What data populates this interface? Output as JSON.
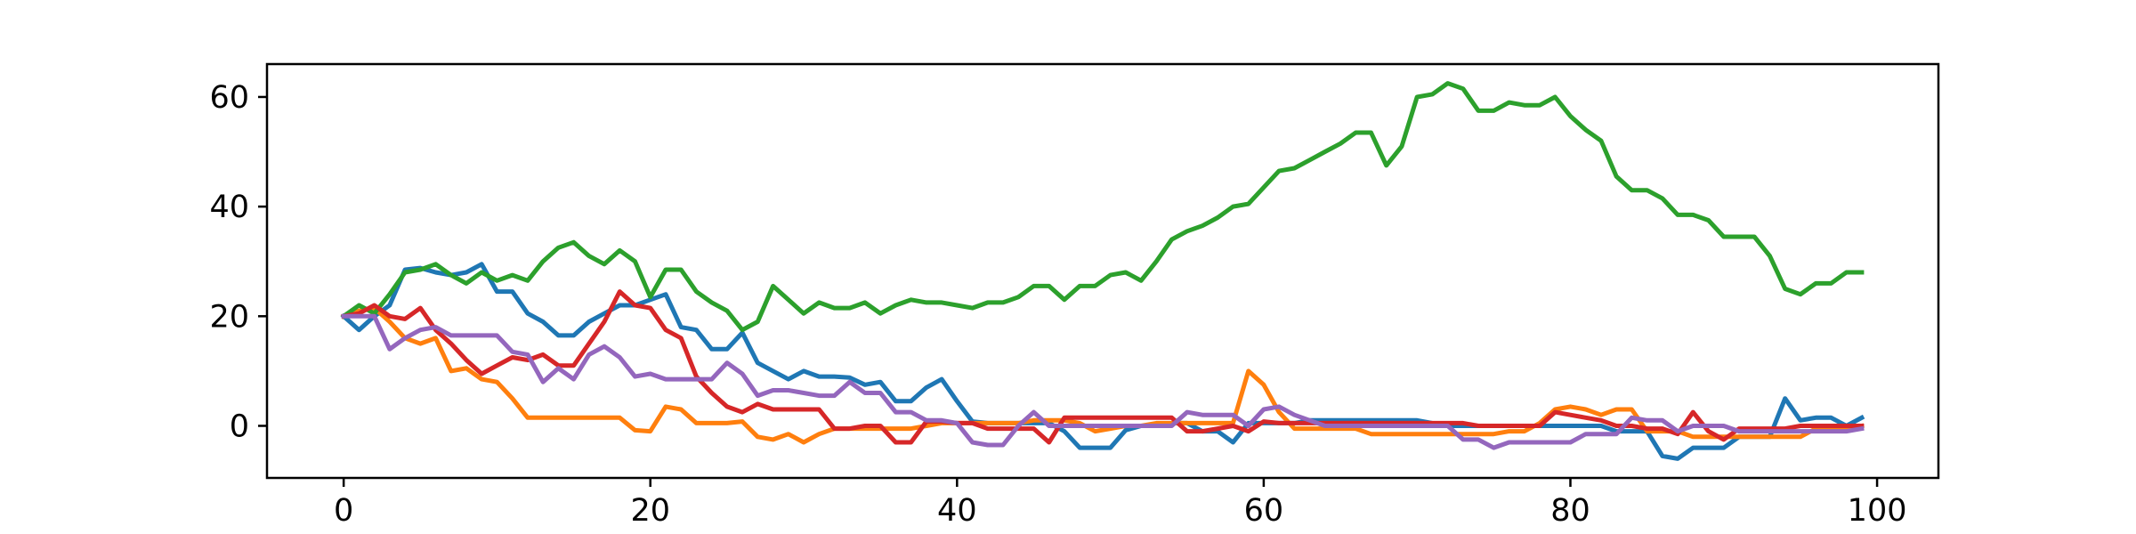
{
  "chart_data": {
    "type": "line",
    "title": "",
    "xlabel": "",
    "ylabel": "",
    "xlim": [
      -5,
      104
    ],
    "ylim": [
      -9.5,
      66
    ],
    "xticks": [
      0,
      20,
      40,
      60,
      80,
      100
    ],
    "yticks": [
      0,
      20,
      40,
      60
    ],
    "grid": false,
    "legend": "none",
    "x_start": 0,
    "series": [
      {
        "color": "#1f77b4",
        "values": [
          20,
          17.5,
          20,
          22,
          28.5,
          28.8,
          28,
          27.5,
          28,
          29.5,
          24.5,
          24.5,
          20.5,
          19,
          16.5,
          16.5,
          19,
          20.5,
          22,
          22,
          23,
          24,
          18,
          17.5,
          14,
          14,
          17,
          11.5,
          10,
          8.5,
          10,
          9,
          9,
          8.8,
          7.5,
          8,
          4.5,
          4.5,
          7,
          8.5,
          4.5,
          0.8,
          0.5,
          0.5,
          0.5,
          0.5,
          0.5,
          -1,
          -4,
          -4,
          -4,
          -0.8,
          0,
          0,
          0.5,
          0.5,
          -1,
          -1,
          -3,
          0.5,
          0.5,
          0.5,
          0.5,
          1,
          1,
          1,
          1,
          1,
          1,
          1,
          1,
          0.5,
          0,
          0,
          0,
          0,
          0,
          0,
          0,
          0,
          0,
          0,
          0,
          -1,
          -1,
          -1,
          -5.5,
          -6,
          -4,
          -4,
          -4,
          -2,
          -2,
          -2,
          5,
          1,
          1.5,
          1.5,
          0,
          1.5
        ]
      },
      {
        "color": "#ff7f0e",
        "values": [
          20,
          21,
          21.5,
          19,
          16,
          15,
          16,
          10,
          10.5,
          8.5,
          8,
          5,
          1.5,
          1.5,
          1.5,
          1.5,
          1.5,
          1.5,
          1.5,
          -0.8,
          -1,
          3.5,
          3,
          0.5,
          0.5,
          0.5,
          0.8,
          -2,
          -2.5,
          -1.5,
          -3,
          -1.5,
          -0.5,
          -0.5,
          -0.5,
          -0.5,
          -0.5,
          -0.5,
          0,
          0.5,
          0.5,
          0.5,
          0.5,
          0.5,
          0.5,
          1,
          1,
          1,
          0.5,
          -1,
          -0.5,
          0,
          0,
          0.5,
          0.5,
          0.5,
          0.5,
          0.5,
          0.5,
          10,
          7.5,
          2.5,
          -0.5,
          -0.5,
          -0.5,
          -0.5,
          -0.5,
          -1.5,
          -1.5,
          -1.5,
          -1.5,
          -1.5,
          -1.5,
          -1.5,
          -1.5,
          -1.5,
          -1,
          -1,
          0.5,
          3,
          3.5,
          3,
          2,
          3,
          3,
          -1,
          -1,
          -1,
          -2,
          -2,
          -2,
          -2,
          -2,
          -2,
          -2,
          -2,
          -0.5,
          -0.5,
          -0.5,
          0
        ]
      },
      {
        "color": "#2ca02c",
        "values": [
          20,
          22,
          20.5,
          24,
          28,
          28.5,
          29.5,
          27.5,
          26,
          28,
          26.5,
          27.5,
          26.5,
          30,
          32.5,
          33.5,
          31,
          29.5,
          32,
          30,
          23.5,
          28.5,
          28.5,
          24.5,
          22.5,
          21,
          17.5,
          19,
          25.5,
          23,
          20.5,
          22.5,
          21.5,
          21.5,
          22.5,
          20.5,
          22,
          23,
          22.5,
          22.5,
          22,
          21.5,
          22.5,
          22.5,
          23.5,
          25.5,
          25.5,
          23,
          25.5,
          25.5,
          27.5,
          28,
          26.5,
          30,
          34,
          35.5,
          36.5,
          38,
          40,
          40.5,
          43.5,
          46.5,
          47,
          48.5,
          50,
          51.5,
          53.5,
          53.5,
          47.5,
          51,
          60,
          60.5,
          62.5,
          61.5,
          57.5,
          57.5,
          59,
          58.5,
          58.5,
          60,
          56.5,
          54,
          52,
          45.5,
          43,
          43,
          41.5,
          38.5,
          38.5,
          37.5,
          34.5,
          34.5,
          34.5,
          31,
          25,
          24,
          26,
          26,
          28,
          28
        ]
      },
      {
        "color": "#d62728",
        "values": [
          20,
          20.5,
          22,
          20,
          19.5,
          21.5,
          17.5,
          15,
          12,
          9.5,
          11,
          12.5,
          12,
          13,
          11,
          11,
          15,
          19,
          24.5,
          22,
          21.5,
          17.5,
          16,
          9,
          6,
          3.5,
          2.5,
          4,
          3,
          3,
          3,
          3,
          -0.5,
          -0.5,
          0,
          0,
          -3,
          -3,
          0.8,
          0.8,
          0.5,
          0.5,
          -0.5,
          -0.5,
          -0.5,
          -0.5,
          -3,
          1.5,
          1.5,
          1.5,
          1.5,
          1.5,
          1.5,
          1.5,
          1.5,
          -1,
          -1,
          -0.5,
          0,
          -1,
          0.8,
          0.5,
          0.5,
          0.5,
          0.5,
          0.5,
          0.5,
          0.5,
          0.5,
          0.5,
          0.5,
          0.5,
          0.5,
          0.5,
          0,
          0,
          0,
          0,
          0,
          2.5,
          2,
          1.5,
          1,
          0,
          0,
          -0.5,
          -0.5,
          -1.5,
          2.5,
          -1,
          -2.5,
          -0.5,
          -0.5,
          -0.5,
          -0.5,
          0,
          0,
          0,
          0,
          0
        ]
      },
      {
        "color": "#9467bd",
        "values": [
          20,
          20,
          20,
          14,
          16,
          17.5,
          18,
          16.5,
          16.5,
          16.5,
          16.5,
          13.5,
          13,
          8,
          10.5,
          8.5,
          13,
          14.5,
          12.5,
          9,
          9.5,
          8.5,
          8.5,
          8.5,
          8.5,
          11.5,
          9.5,
          5.5,
          6.5,
          6.5,
          6,
          5.5,
          5.5,
          8,
          6,
          6,
          2.5,
          2.5,
          1,
          1,
          0.5,
          -3,
          -3.5,
          -3.5,
          0,
          2.5,
          0,
          0,
          0,
          0,
          0,
          0,
          0,
          0,
          0,
          2.5,
          2,
          2,
          2,
          0,
          3,
          3.5,
          2,
          1,
          0,
          0,
          0,
          0,
          0,
          0,
          0,
          0,
          0,
          -2.5,
          -2.5,
          -4,
          -3,
          -3,
          -3,
          -3,
          -3,
          -1.5,
          -1.5,
          -1.5,
          1.5,
          1,
          1,
          -1,
          0,
          0,
          0,
          -1,
          -1,
          -1,
          -1,
          -1,
          -1,
          -1,
          -1,
          -0.5
        ]
      }
    ]
  }
}
